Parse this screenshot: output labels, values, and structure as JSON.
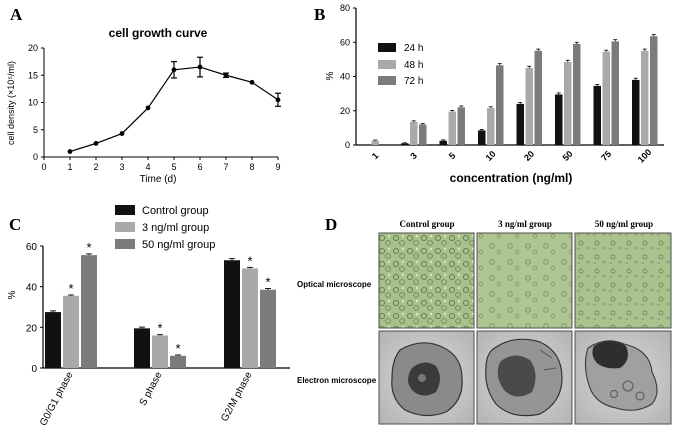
{
  "panels": {
    "A": {
      "letter": "A"
    },
    "B": {
      "letter": "B"
    },
    "C": {
      "letter": "C"
    },
    "D": {
      "letter": "D",
      "columns": [
        "Control group",
        "3 ng/ml group",
        "50 ng/ml group"
      ],
      "rows": [
        "Optical microscope",
        "Electron microscope"
      ]
    }
  },
  "colors": {
    "black": "#111111",
    "light": "#a9a9a9",
    "dark": "#7b7b7b",
    "optical": "#a8c08c",
    "em": "#c9c9c9"
  },
  "chart_data": [
    {
      "id": "A",
      "type": "line",
      "title": "cell growth curve",
      "xlabel": "Time (d)",
      "ylabel": "cell density (×10⁵/ml)",
      "x": [
        1,
        2,
        3,
        4,
        5,
        6,
        7,
        8,
        9
      ],
      "y": [
        1.0,
        2.5,
        4.3,
        9.0,
        16.0,
        16.5,
        15.0,
        13.7,
        10.5
      ],
      "err": [
        0.1,
        0.1,
        0.15,
        0.2,
        1.5,
        1.8,
        0.4,
        0.2,
        1.2
      ],
      "xlim": [
        0,
        9
      ],
      "ylim": [
        0,
        20
      ],
      "xticks": [
        "0",
        "1",
        "2",
        "3",
        "4",
        "5",
        "6",
        "7",
        "8",
        "9"
      ],
      "yticks": [
        "0",
        "5",
        "10",
        "15",
        "20"
      ]
    },
    {
      "id": "B",
      "type": "bar",
      "categories": [
        "1",
        "3",
        "5",
        "10",
        "20",
        "50",
        "75",
        "100"
      ],
      "series": [
        {
          "name": "24 h",
          "values": [
            0,
            1,
            2.5,
            8.5,
            24,
            29.5,
            34.5,
            38
          ],
          "err": [
            0.2,
            0.3,
            0.5,
            0.6,
            0.8,
            0.9,
            0.8,
            1.0
          ]
        },
        {
          "name": "48 h",
          "values": [
            2.5,
            13.5,
            19.5,
            21.5,
            45,
            48.5,
            54.5,
            55
          ],
          "err": [
            0.4,
            0.6,
            0.7,
            0.8,
            1.0,
            1.0,
            0.9,
            1.0
          ]
        },
        {
          "name": "72 h",
          "values": [
            0,
            12,
            22,
            46.5,
            55,
            59,
            60.5,
            63.5
          ],
          "err": [
            0.2,
            0.5,
            0.8,
            1.0,
            1.0,
            1.0,
            1.0,
            1.0
          ]
        }
      ],
      "xlabel": "concentration (ng/ml)",
      "ylabel": "%",
      "ylim": [
        0,
        80
      ],
      "yticks": [
        "0",
        "20",
        "40",
        "60",
        "80"
      ]
    },
    {
      "id": "C",
      "type": "bar",
      "categories": [
        "G0/G1 phase",
        "S phase",
        "G2/M phase"
      ],
      "series": [
        {
          "name": "Control group",
          "values": [
            27.5,
            19.5,
            53
          ],
          "err": [
            0.6,
            0.6,
            0.8
          ]
        },
        {
          "name": "3 ng/ml group",
          "values": [
            35.5,
            16,
            49
          ],
          "err": [
            0.4,
            0.4,
            0.5
          ],
          "sig": [
            "*",
            "*",
            "*"
          ]
        },
        {
          "name": "50 ng/ml group",
          "values": [
            55.5,
            6,
            38.5
          ],
          "err": [
            0.6,
            0.4,
            0.6
          ],
          "sig": [
            "*",
            "*",
            "*"
          ]
        }
      ],
      "ylabel": "%",
      "ylim": [
        0,
        60
      ],
      "yticks": [
        "0",
        "20",
        "40",
        "60"
      ]
    }
  ]
}
